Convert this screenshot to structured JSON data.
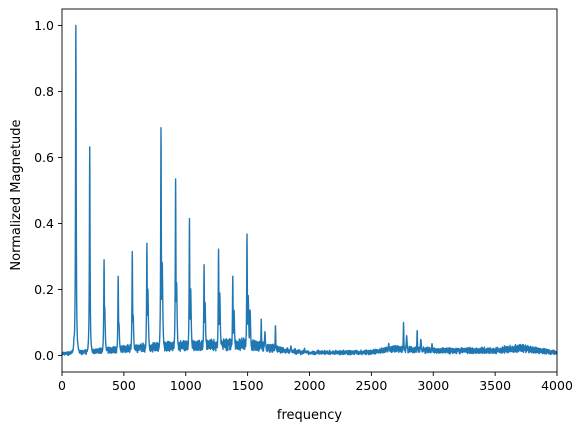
{
  "chart_data": {
    "type": "line",
    "title": "",
    "xlabel": "frequency",
    "ylabel": "Normalized Magnetude",
    "xlim": [
      0,
      4000
    ],
    "ylim": [
      -0.05,
      1.05
    ],
    "grid": false,
    "legend": false,
    "x_ticks": [
      "0",
      "500",
      "1000",
      "1500",
      "2000",
      "2500",
      "3000",
      "3500",
      "4000"
    ],
    "y_ticks": [
      "0.0",
      "0.2",
      "0.4",
      "0.6",
      "0.8",
      "1.0"
    ],
    "x_tick_values": [
      0,
      500,
      1000,
      1500,
      2000,
      2500,
      3000,
      3500,
      4000
    ],
    "y_tick_values": [
      0.0,
      0.2,
      0.4,
      0.6,
      0.8,
      1.0
    ],
    "colors": {
      "line": "#1f77b4",
      "axes": "#000000",
      "background": "#ffffff"
    },
    "series": [
      {
        "peaks": [
          {
            "x": 112,
            "y": 1.0
          },
          {
            "x": 224,
            "y": 0.632
          },
          {
            "x": 340,
            "y": 0.29
          },
          {
            "x": 454,
            "y": 0.24
          },
          {
            "x": 568,
            "y": 0.315
          },
          {
            "x": 686,
            "y": 0.34
          },
          {
            "x": 800,
            "y": 0.69
          },
          {
            "x": 918,
            "y": 0.535
          },
          {
            "x": 1030,
            "y": 0.415
          },
          {
            "x": 1148,
            "y": 0.275
          },
          {
            "x": 1265,
            "y": 0.322
          },
          {
            "x": 1380,
            "y": 0.24
          },
          {
            "x": 1495,
            "y": 0.368
          },
          {
            "x": 1610,
            "y": 0.11
          },
          {
            "x": 1725,
            "y": 0.09
          },
          {
            "x": 2760,
            "y": 0.1
          },
          {
            "x": 2870,
            "y": 0.075
          }
        ],
        "secondary_peaks": [
          {
            "x": 98,
            "y": 0.06
          },
          {
            "x": 345,
            "y": 0.15
          },
          {
            "x": 460,
            "y": 0.1
          },
          {
            "x": 575,
            "y": 0.12
          },
          {
            "x": 694,
            "y": 0.2
          },
          {
            "x": 810,
            "y": 0.28
          },
          {
            "x": 926,
            "y": 0.22
          },
          {
            "x": 1040,
            "y": 0.2
          },
          {
            "x": 1156,
            "y": 0.16
          },
          {
            "x": 1275,
            "y": 0.19
          },
          {
            "x": 1390,
            "y": 0.14
          },
          {
            "x": 1505,
            "y": 0.18
          },
          {
            "x": 1520,
            "y": 0.14
          },
          {
            "x": 1640,
            "y": 0.07
          },
          {
            "x": 1850,
            "y": 0.03
          },
          {
            "x": 1960,
            "y": 0.02
          },
          {
            "x": 2070,
            "y": 0.015
          },
          {
            "x": 2640,
            "y": 0.035
          },
          {
            "x": 2785,
            "y": 0.06
          },
          {
            "x": 2900,
            "y": 0.05
          },
          {
            "x": 2990,
            "y": 0.035
          },
          {
            "x": 3700,
            "y": 0.03
          }
        ],
        "baseline": [
          {
            "x": 0,
            "y": 0.005
          },
          {
            "x": 500,
            "y": 0.02
          },
          {
            "x": 1000,
            "y": 0.03
          },
          {
            "x": 1500,
            "y": 0.035
          },
          {
            "x": 1800,
            "y": 0.015
          },
          {
            "x": 2000,
            "y": 0.008
          },
          {
            "x": 2500,
            "y": 0.01
          },
          {
            "x": 2700,
            "y": 0.02
          },
          {
            "x": 3000,
            "y": 0.015
          },
          {
            "x": 3500,
            "y": 0.015
          },
          {
            "x": 3700,
            "y": 0.022
          },
          {
            "x": 4000,
            "y": 0.008
          }
        ]
      }
    ]
  }
}
